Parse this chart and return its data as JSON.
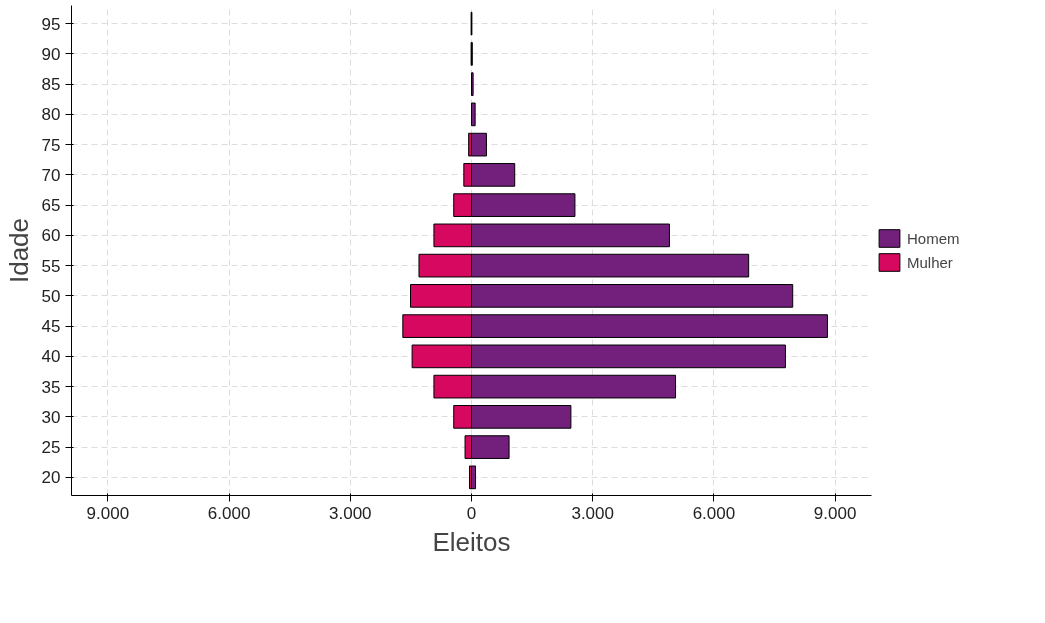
{
  "chart_data": {
    "type": "bar",
    "orientation": "horizontal",
    "xlabel": "Eleitos",
    "ylabel": "Idade",
    "categories": [
      "95",
      "90",
      "85",
      "80",
      "75",
      "70",
      "65",
      "60",
      "55",
      "50",
      "45",
      "40",
      "35",
      "30",
      "25",
      "20"
    ],
    "series": [
      {
        "name": "Homem",
        "color": "#731f7c",
        "values": [
          10,
          20,
          40,
          90,
          370,
          1070,
          2560,
          4900,
          6860,
          7950,
          8810,
          7770,
          5050,
          2460,
          930,
          100
        ]
      },
      {
        "name": "Mulher",
        "color": "#d6085f",
        "values": [
          -10,
          -10,
          null,
          null,
          -70,
          -190,
          -440,
          -930,
          -1300,
          -1510,
          -1700,
          -1470,
          -930,
          -440,
          -160,
          -50
        ]
      }
    ],
    "xlim": [
      -9900,
      9900
    ],
    "xticks": [
      {
        "value": -9000,
        "label": "9.000"
      },
      {
        "value": -6000,
        "label": "6.000"
      },
      {
        "value": -3000,
        "label": "3.000"
      },
      0,
      {
        "value": 3000,
        "label": "3.000"
      },
      {
        "value": 6000,
        "label": "6.000"
      },
      {
        "value": 9000,
        "label": "9.000"
      }
    ],
    "stacked": true,
    "grid": true,
    "legend": "right"
  }
}
